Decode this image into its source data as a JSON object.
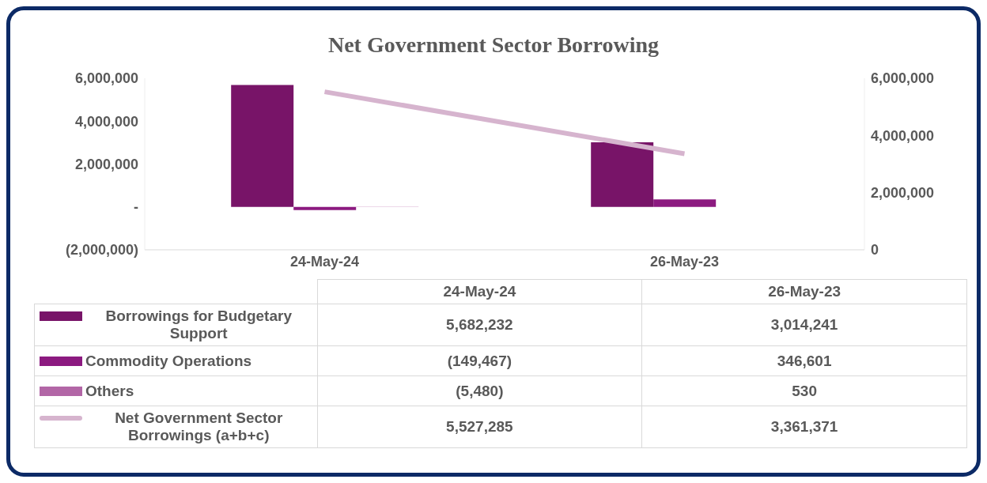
{
  "chart_data": {
    "type": "bar",
    "title": "Net Government Sector Borrowing",
    "categories": [
      "24-May-24",
      "26-May-23"
    ],
    "series": [
      {
        "name": "Borrowings for Budgetary Support",
        "color": "#781468",
        "values": [
          5682232,
          3014241
        ],
        "value_labels": [
          "5,682,232",
          "3,014,241"
        ]
      },
      {
        "name": "Commodity Operations",
        "color": "#8c1a80",
        "values": [
          -149467,
          346601
        ],
        "value_labels": [
          "(149,467)",
          "346,601"
        ]
      },
      {
        "name": "Others",
        "color": "#b266a6",
        "values": [
          -5480,
          530
        ],
        "value_labels": [
          "(5,480)",
          "530"
        ]
      },
      {
        "name": "Net Government Sector Borrowings (a+b+c)",
        "type": "line",
        "axis": "y2",
        "color": "#d6b4ce",
        "values": [
          5527285,
          3361371
        ],
        "value_labels": [
          "5,527,285",
          "3,361,371"
        ]
      }
    ],
    "ylim": [
      -2000000,
      6000000
    ],
    "yticks": [
      {
        "value": -2000000,
        "label": "(2,000,000)"
      },
      {
        "value": 0,
        "label": "-"
      },
      {
        "value": 2000000,
        "label": "2,000,000"
      },
      {
        "value": 4000000,
        "label": "4,000,000"
      },
      {
        "value": 6000000,
        "label": "6,000,000"
      }
    ],
    "y2lim": [
      0,
      6000000
    ],
    "y2ticks": [
      {
        "value": 0,
        "label": "0"
      },
      {
        "value": 2000000,
        "label": "2,000,000"
      },
      {
        "value": 4000000,
        "label": "4,000,000"
      },
      {
        "value": 6000000,
        "label": "6,000,000"
      }
    ],
    "grid": false,
    "legend": "bottom",
    "marker": "none"
  }
}
